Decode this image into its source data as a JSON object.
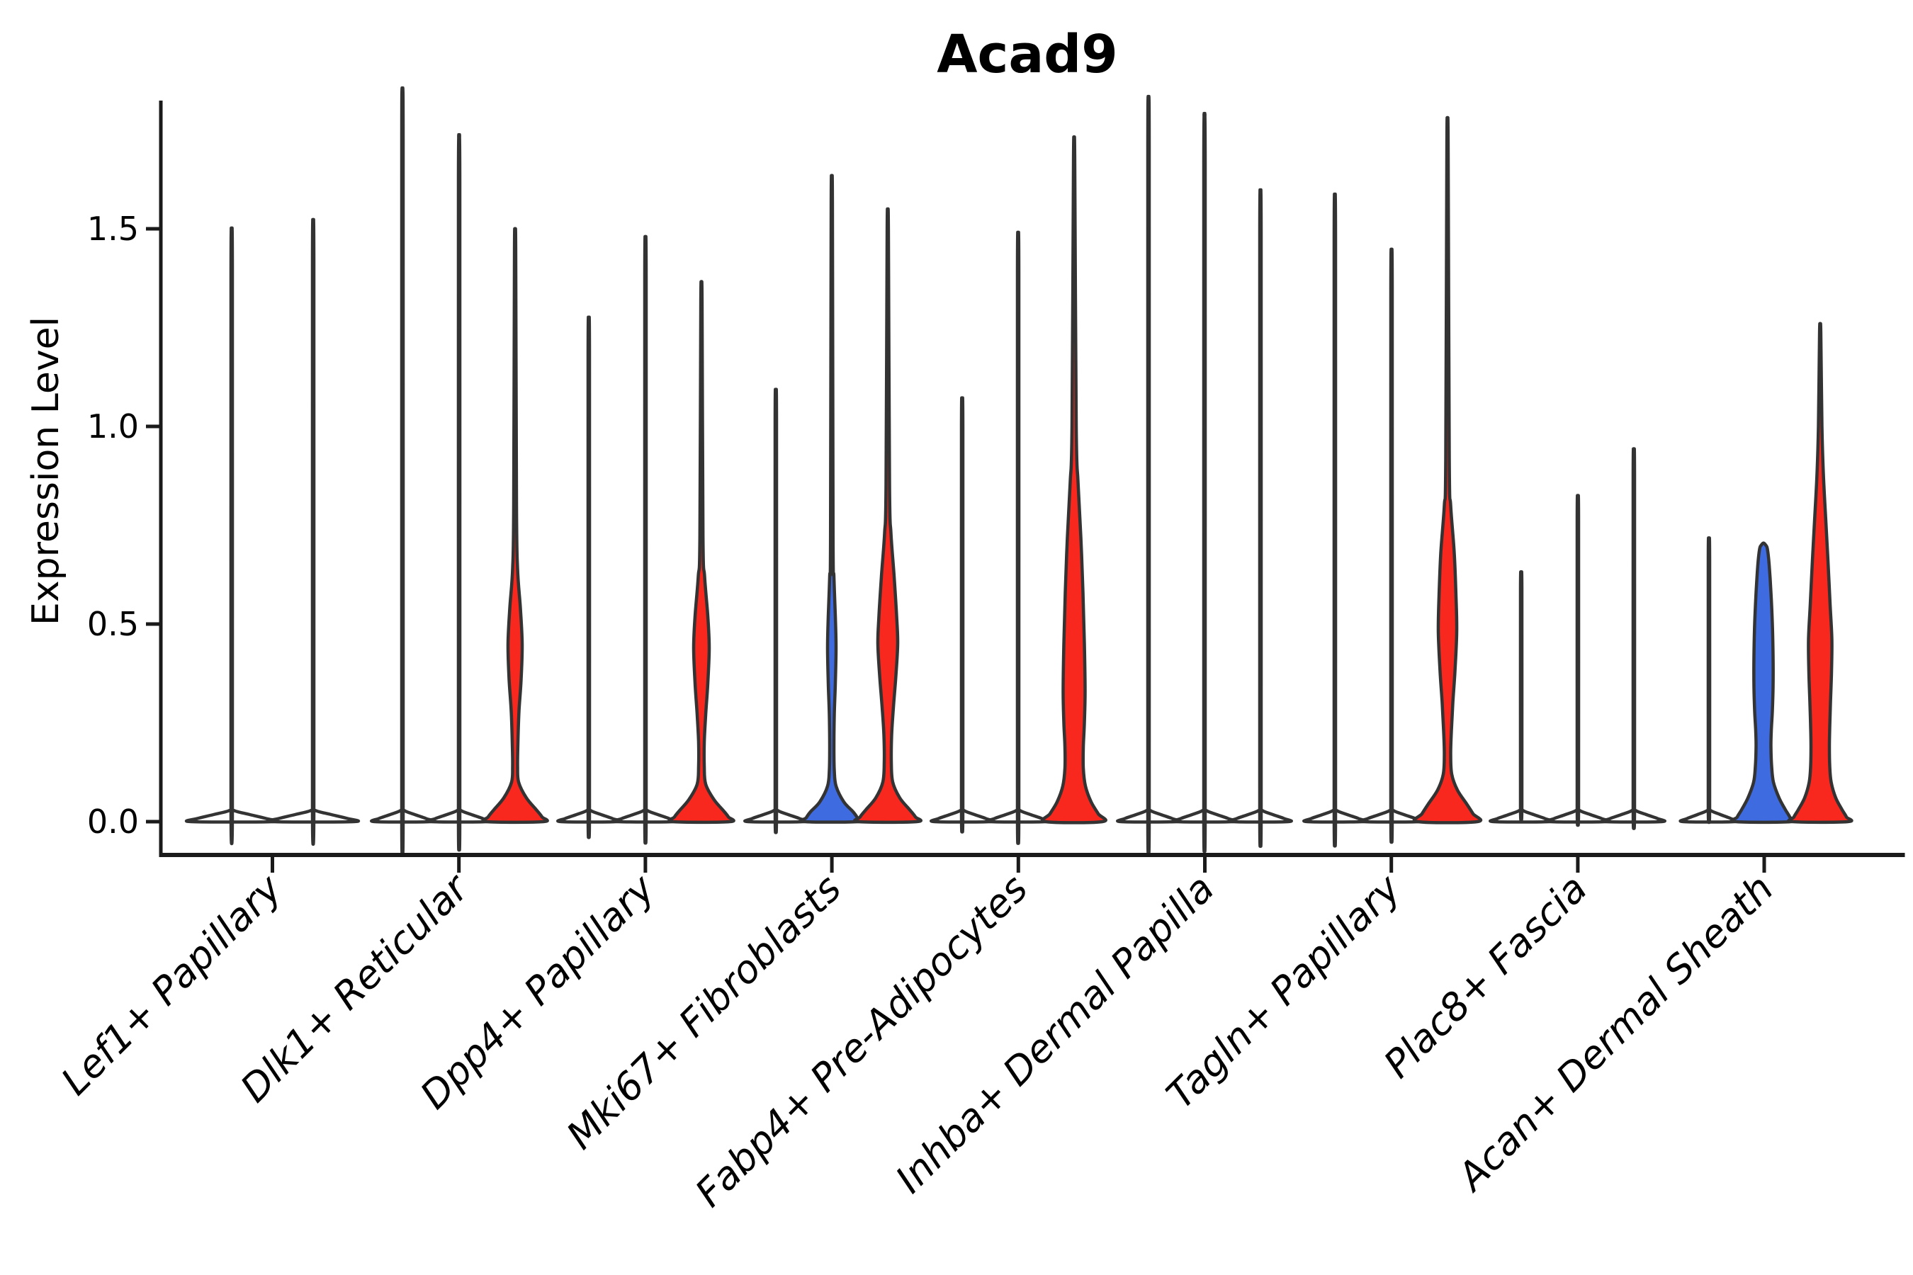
{
  "colors": {
    "red": "#f8281e",
    "blue": "#3f6be0",
    "outline": "#333333",
    "axis": "#1a1a1a",
    "background": "#ffffff"
  },
  "chart_data": {
    "type": "violin",
    "title": "Acad9",
    "xlabel": "",
    "ylabel": "Expression Level",
    "ylim": [
      -0.08,
      1.85
    ],
    "yticks": [
      0,
      0.5,
      1.0,
      1.5
    ],
    "ytick_labels": [
      "0.0",
      "0.5",
      "1.0",
      "1.5"
    ],
    "grid": false,
    "legend": "none",
    "x_label_angle_deg": 45,
    "categories": [
      "Lef1+ Papillary",
      "Dlk1+ Reticular",
      "Dpp4+ Papillary",
      "Mki67+ Fibroblasts",
      "Fabp4+ Pre-Adipocytes",
      "Inhba+ Dermal Papilla",
      "Tagln+ Papillary",
      "Plac8+ Fascia",
      "Acan+ Dermal Sheath"
    ],
    "groups": [
      {
        "category": "Lef1+ Papillary",
        "tick_x": 384.5,
        "violins": [
          {
            "x": 327,
            "fill": "none",
            "shape": "spike",
            "max": 1.41,
            "base_halfwidth": 57
          },
          {
            "x": 442,
            "fill": "none",
            "shape": "spike",
            "max": 1.43,
            "base_halfwidth": 57
          }
        ]
      },
      {
        "category": "Dlk1+ Reticular",
        "tick_x": 647.7,
        "violins": [
          {
            "x": 568,
            "fill": "none",
            "shape": "spike",
            "max": 1.74,
            "base_halfwidth": 39
          },
          {
            "x": 648,
            "fill": "none",
            "shape": "spike",
            "max": 1.63,
            "base_halfwidth": 39
          },
          {
            "x": 727,
            "fill": "red",
            "shape": "body",
            "max": 1.46,
            "profile": [
              [
                1.46,
                0
              ],
              [
                1.448,
                0.9
              ],
              [
                0.8,
                2
              ],
              [
                0.64,
                3.5
              ],
              [
                0.54,
                7.5
              ],
              [
                0.45,
                10
              ],
              [
                0.36,
                8.5
              ],
              [
                0.28,
                5.5
              ],
              [
                0.2,
                4
              ],
              [
                0.14,
                3.5
              ],
              [
                0.1,
                5
              ],
              [
                0.06,
                16
              ],
              [
                0.03,
                30
              ],
              [
                0.012,
                38
              ],
              [
                0,
                40
              ]
            ]
          }
        ]
      },
      {
        "category": "Dpp4+ Papillary",
        "tick_x": 910.9,
        "violins": [
          {
            "x": 831,
            "fill": "none",
            "shape": "spike",
            "max": 1.2,
            "base_halfwidth": 39
          },
          {
            "x": 911,
            "fill": "none",
            "shape": "spike",
            "max": 1.39,
            "base_halfwidth": 39
          },
          {
            "x": 990,
            "fill": "red",
            "shape": "body",
            "max": 1.33,
            "profile": [
              [
                1.33,
                0
              ],
              [
                1.318,
                0.9
              ],
              [
                0.72,
                2.2
              ],
              [
                0.62,
                4.5
              ],
              [
                0.52,
                9
              ],
              [
                0.44,
                11
              ],
              [
                0.35,
                9
              ],
              [
                0.27,
                6
              ],
              [
                0.2,
                4
              ],
              [
                0.14,
                4
              ],
              [
                0.095,
                6
              ],
              [
                0.055,
                18
              ],
              [
                0.028,
                31
              ],
              [
                0.012,
                38
              ],
              [
                0,
                40
              ]
            ]
          }
        ]
      },
      {
        "category": "Mki67+ Fibroblasts",
        "tick_x": 1174.1,
        "violins": [
          {
            "x": 1095,
            "fill": "none",
            "shape": "spike",
            "max": 1.03,
            "base_halfwidth": 39
          },
          {
            "x": 1174,
            "fill": "blue",
            "shape": "body",
            "max": 1.58,
            "profile": [
              [
                1.58,
                0
              ],
              [
                1.568,
                0.9
              ],
              [
                0.72,
                1.8
              ],
              [
                0.62,
                3
              ],
              [
                0.52,
                5
              ],
              [
                0.44,
                6
              ],
              [
                0.35,
                5
              ],
              [
                0.27,
                3.5
              ],
              [
                0.19,
                3
              ],
              [
                0.13,
                3.5
              ],
              [
                0.09,
                6
              ],
              [
                0.05,
                17
              ],
              [
                0.025,
                30
              ],
              [
                0.01,
                36
              ],
              [
                0,
                38
              ]
            ]
          },
          {
            "x": 1253,
            "fill": "red",
            "shape": "body",
            "max": 1.51,
            "profile": [
              [
                1.51,
                0
              ],
              [
                1.498,
                0.9
              ],
              [
                0.85,
                2.5
              ],
              [
                0.73,
                4.5
              ],
              [
                0.62,
                9
              ],
              [
                0.52,
                12.5
              ],
              [
                0.45,
                14
              ],
              [
                0.37,
                11.5
              ],
              [
                0.29,
                8
              ],
              [
                0.22,
                5.5
              ],
              [
                0.15,
                5
              ],
              [
                0.1,
                7
              ],
              [
                0.06,
                17
              ],
              [
                0.03,
                31
              ],
              [
                0.012,
                39
              ],
              [
                0,
                41
              ]
            ]
          }
        ]
      },
      {
        "category": "Fabp4+ Pre-Adipocytes",
        "tick_x": 1437.3,
        "violins": [
          {
            "x": 1358,
            "fill": "none",
            "shape": "spike",
            "max": 1.01,
            "base_halfwidth": 39
          },
          {
            "x": 1437,
            "fill": "none",
            "shape": "spike",
            "max": 1.4,
            "base_halfwidth": 39
          },
          {
            "x": 1516,
            "fill": "red",
            "shape": "body",
            "max": 1.69,
            "profile": [
              [
                1.69,
                0
              ],
              [
                1.678,
                0.9
              ],
              [
                1.0,
                3
              ],
              [
                0.86,
                5.5
              ],
              [
                0.72,
                9.5
              ],
              [
                0.58,
                12.5
              ],
              [
                0.45,
                14.5
              ],
              [
                0.33,
                15.5
              ],
              [
                0.25,
                14.5
              ],
              [
                0.19,
                13
              ],
              [
                0.135,
                13
              ],
              [
                0.09,
                16
              ],
              [
                0.05,
                24
              ],
              [
                0.02,
                34
              ],
              [
                0,
                40
              ]
            ]
          }
        ]
      },
      {
        "category": "Inhba+ Dermal Papilla",
        "tick_x": 1700.5,
        "violins": [
          {
            "x": 1621,
            "fill": "none",
            "shape": "spike",
            "max": 1.72,
            "base_halfwidth": 39
          },
          {
            "x": 1700,
            "fill": "none",
            "shape": "spike",
            "max": 1.68,
            "base_halfwidth": 39
          },
          {
            "x": 1779,
            "fill": "none",
            "shape": "spike",
            "max": 1.5,
            "base_halfwidth": 39
          }
        ]
      },
      {
        "category": "Tagln+ Papillary",
        "tick_x": 1963.7,
        "violins": [
          {
            "x": 1884,
            "fill": "none",
            "shape": "spike",
            "max": 1.49,
            "base_halfwidth": 39
          },
          {
            "x": 1964,
            "fill": "none",
            "shape": "spike",
            "max": 1.36,
            "base_halfwidth": 39
          },
          {
            "x": 2043,
            "fill": "red",
            "shape": "body",
            "max": 1.73,
            "profile": [
              [
                1.73,
                0
              ],
              [
                1.718,
                0.9
              ],
              [
                0.92,
                2.5
              ],
              [
                0.8,
                4.5
              ],
              [
                0.68,
                9.5
              ],
              [
                0.57,
                12
              ],
              [
                0.48,
                13
              ],
              [
                0.38,
                10.5
              ],
              [
                0.3,
                7.5
              ],
              [
                0.23,
                5.5
              ],
              [
                0.17,
                4.5
              ],
              [
                0.12,
                6
              ],
              [
                0.08,
                14
              ],
              [
                0.045,
                27
              ],
              [
                0.02,
                36
              ],
              [
                0,
                42
              ]
            ]
          }
        ]
      },
      {
        "category": "Plac8+ Fascia",
        "tick_x": 2226.9,
        "violins": [
          {
            "x": 2147,
            "fill": "none",
            "shape": "spike",
            "max": 0.6,
            "base_halfwidth": 39
          },
          {
            "x": 2227,
            "fill": "none",
            "shape": "spike",
            "max": 0.78,
            "base_halfwidth": 39
          },
          {
            "x": 2306,
            "fill": "none",
            "shape": "spike",
            "max": 0.89,
            "base_halfwidth": 39
          }
        ]
      },
      {
        "category": "Acan+ Dermal Sheath",
        "tick_x": 2490,
        "violins": [
          {
            "x": 2412,
            "fill": "none",
            "shape": "spike",
            "max": 0.68,
            "base_halfwidth": 36
          },
          {
            "x": 2489,
            "fill": "blue",
            "shape": "body",
            "max": 0.705,
            "profile": [
              [
                0.705,
                0
              ],
              [
                0.7,
                3
              ],
              [
                0.69,
                5.5
              ],
              [
                0.65,
                8
              ],
              [
                0.58,
                10.5
              ],
              [
                0.5,
                12.5
              ],
              [
                0.42,
                13.5
              ],
              [
                0.34,
                13.5
              ],
              [
                0.28,
                12.5
              ],
              [
                0.23,
                11
              ],
              [
                0.19,
                10.5
              ],
              [
                0.14,
                11.5
              ],
              [
                0.1,
                14
              ],
              [
                0.06,
                22
              ],
              [
                0.03,
                31
              ],
              [
                0.012,
                37
              ],
              [
                0,
                39
              ]
            ]
          },
          {
            "x": 2569,
            "fill": "red",
            "shape": "body",
            "max": 1.25,
            "profile": [
              [
                1.25,
                0
              ],
              [
                1.238,
                0.9
              ],
              [
                1.0,
                2.5
              ],
              [
                0.88,
                4.5
              ],
              [
                0.76,
                8
              ],
              [
                0.66,
                11
              ],
              [
                0.55,
                14
              ],
              [
                0.46,
                16.5
              ],
              [
                0.38,
                16
              ],
              [
                0.3,
                14.5
              ],
              [
                0.24,
                13.5
              ],
              [
                0.19,
                13
              ],
              [
                0.14,
                13.5
              ],
              [
                0.1,
                15.5
              ],
              [
                0.06,
                22
              ],
              [
                0.03,
                31
              ],
              [
                0.012,
                37
              ],
              [
                0,
                39
              ]
            ]
          }
        ]
      }
    ]
  }
}
